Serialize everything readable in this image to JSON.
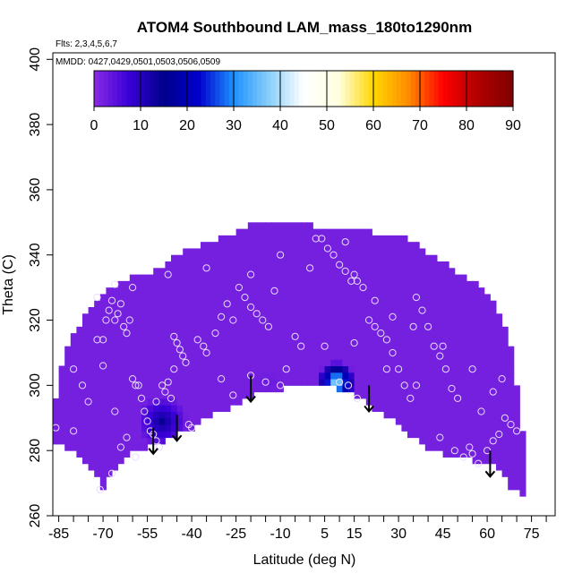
{
  "chart_data": {
    "type": "heatmap",
    "title": "ATOM4 Southbound LAM_mass_180to1290nm",
    "subtitle_flights": "Flts: 2,3,4,5,6,7",
    "subtitle_dates": "MMDD: 0427,0429,0501,0503,0506,0509",
    "xlabel": "Latitude (deg N)",
    "ylabel": "Theta (C)",
    "xlim": [
      -87,
      83
    ],
    "ylim": [
      260,
      402
    ],
    "x_ticks": [
      -85,
      -70,
      -55,
      -40,
      -25,
      -10,
      5,
      15,
      30,
      45,
      60,
      75
    ],
    "x_minor_ticks": [
      -80,
      -75,
      -65,
      -60,
      -50,
      -45,
      -35,
      -30,
      -20,
      -15,
      -5,
      0,
      10,
      20,
      25,
      35,
      40,
      50,
      55,
      65,
      70,
      80
    ],
    "y_ticks": [
      260,
      280,
      300,
      320,
      340,
      360,
      380,
      400
    ],
    "colorbar": {
      "min": 0,
      "max": 90,
      "ticks": [
        0,
        10,
        20,
        30,
        40,
        50,
        60,
        70,
        80,
        90
      ],
      "stops": [
        "#8a2be2",
        "#3a00d8",
        "#00008b",
        "#0000cd",
        "#1e90ff",
        "#87cefa",
        "#ffffff",
        "#ffffe0",
        "#ffd700",
        "#ff8c00",
        "#ff0000",
        "#b00000",
        "#800000"
      ]
    },
    "background_value": 2,
    "domain_top": [
      [
        -87,
        287
      ],
      [
        -86,
        295
      ],
      [
        -84,
        305
      ],
      [
        -82,
        312
      ],
      [
        -79,
        317
      ],
      [
        -76,
        321
      ],
      [
        -73,
        325
      ],
      [
        -68,
        329
      ],
      [
        -60,
        333
      ],
      [
        -50,
        336
      ],
      [
        -45,
        340
      ],
      [
        -40,
        342
      ],
      [
        -30,
        345
      ],
      [
        -20,
        349
      ],
      [
        -10,
        350
      ],
      [
        0,
        349
      ],
      [
        10,
        348
      ],
      [
        20,
        347
      ],
      [
        30,
        346
      ],
      [
        35,
        344
      ],
      [
        40,
        340
      ],
      [
        48,
        336
      ],
      [
        55,
        332
      ],
      [
        62,
        326
      ],
      [
        66,
        318
      ],
      [
        69,
        308
      ],
      [
        70,
        300
      ],
      [
        71,
        292
      ],
      [
        72,
        285
      ],
      [
        72,
        266
      ]
    ],
    "domain_bottom": [
      [
        -87,
        287
      ],
      [
        -87,
        282
      ],
      [
        -83,
        281
      ],
      [
        -78,
        278
      ],
      [
        -75,
        275
      ],
      [
        -72,
        272
      ],
      [
        -70,
        269
      ],
      [
        -65,
        275
      ],
      [
        -60,
        280
      ],
      [
        -55,
        281
      ],
      [
        -50,
        283
      ],
      [
        -45,
        285
      ],
      [
        -40,
        287
      ],
      [
        -35,
        290
      ],
      [
        -28,
        293
      ],
      [
        -22,
        296
      ],
      [
        -15,
        298
      ],
      [
        -10,
        299
      ],
      [
        -5,
        300
      ],
      [
        0,
        301
      ],
      [
        5,
        300
      ],
      [
        10,
        299
      ],
      [
        15,
        297
      ],
      [
        20,
        294
      ],
      [
        25,
        291
      ],
      [
        30,
        288
      ],
      [
        35,
        284
      ],
      [
        40,
        281
      ],
      [
        45,
        279
      ],
      [
        50,
        278
      ],
      [
        55,
        277
      ],
      [
        60,
        276
      ],
      [
        65,
        274
      ],
      [
        68,
        269
      ],
      [
        72,
        266
      ]
    ],
    "features": [
      {
        "name": "enhancement-south",
        "x_range": [
          -57,
          -40
        ],
        "y_range": [
          280,
          296
        ],
        "center": [
          -50,
          289
        ],
        "peak": 14
      },
      {
        "name": "enhancement-equator",
        "x_range": [
          3,
          16
        ],
        "y_range": [
          298,
          311
        ],
        "center": [
          9,
          301
        ],
        "peak": 42
      },
      {
        "name": "enhancement-weak",
        "x_range": [
          -19,
          -9
        ],
        "y_range": [
          298,
          305
        ],
        "center": [
          -14,
          301
        ],
        "peak": 3
      }
    ],
    "arrows": [
      {
        "x": -53,
        "y_top": 287,
        "y_bottom": 279
      },
      {
        "x": -45,
        "y_top": 291,
        "y_bottom": 283
      },
      {
        "x": -20,
        "y_top": 303,
        "y_bottom": 295
      },
      {
        "x": 20,
        "y_top": 300,
        "y_bottom": 292
      },
      {
        "x": 61,
        "y_top": 280,
        "y_bottom": 272
      }
    ],
    "sample_points": [
      [
        -86,
        287
      ],
      [
        -80,
        286
      ],
      [
        -75,
        295
      ],
      [
        -72,
        314
      ],
      [
        -70,
        306
      ],
      [
        -70,
        314
      ],
      [
        -69,
        320
      ],
      [
        -68,
        323
      ],
      [
        -67,
        326
      ],
      [
        -66,
        320
      ],
      [
        -65,
        322
      ],
      [
        -64,
        325
      ],
      [
        -63,
        318
      ],
      [
        -62,
        316
      ],
      [
        -61,
        320
      ],
      [
        -60,
        302
      ],
      [
        -59,
        300
      ],
      [
        -58,
        300
      ],
      [
        -57,
        296
      ],
      [
        -56,
        292
      ],
      [
        -55,
        289
      ],
      [
        -54,
        286
      ],
      [
        -53,
        285
      ],
      [
        -52,
        283
      ],
      [
        -51,
        281
      ],
      [
        -50,
        300
      ],
      [
        -49,
        298
      ],
      [
        -48,
        301
      ],
      [
        -47,
        296
      ],
      [
        -46,
        315
      ],
      [
        -45,
        313
      ],
      [
        -44,
        311
      ],
      [
        -43,
        309
      ],
      [
        -42,
        307
      ],
      [
        -41,
        288
      ],
      [
        -40,
        287
      ],
      [
        -38,
        314
      ],
      [
        -36,
        312
      ],
      [
        -35,
        310
      ],
      [
        -32,
        316
      ],
      [
        -30,
        321
      ],
      [
        -28,
        325
      ],
      [
        -26,
        320
      ],
      [
        -24,
        330
      ],
      [
        -22,
        327
      ],
      [
        -20,
        324
      ],
      [
        -18,
        322
      ],
      [
        -16,
        320
      ],
      [
        -14,
        318
      ],
      [
        -12,
        329
      ],
      [
        -10,
        300
      ],
      [
        -8,
        305
      ],
      [
        -5,
        315
      ],
      [
        -3,
        312
      ],
      [
        0,
        336
      ],
      [
        2,
        345
      ],
      [
        4,
        345
      ],
      [
        6,
        342
      ],
      [
        8,
        340
      ],
      [
        10,
        337
      ],
      [
        12,
        335
      ],
      [
        14,
        332
      ],
      [
        16,
        332
      ],
      [
        18,
        330
      ],
      [
        20,
        320
      ],
      [
        22,
        318
      ],
      [
        24,
        316
      ],
      [
        26,
        314
      ],
      [
        28,
        310
      ],
      [
        30,
        305
      ],
      [
        32,
        300
      ],
      [
        34,
        296
      ],
      [
        36,
        327
      ],
      [
        38,
        323
      ],
      [
        40,
        318
      ],
      [
        42,
        312
      ],
      [
        44,
        309
      ],
      [
        46,
        305
      ],
      [
        48,
        299
      ],
      [
        50,
        296
      ],
      [
        52,
        278
      ],
      [
        54,
        281
      ],
      [
        55,
        279
      ],
      [
        57,
        276
      ],
      [
        60,
        280
      ],
      [
        62,
        283
      ],
      [
        64,
        285
      ],
      [
        66,
        290
      ],
      [
        68,
        288
      ],
      [
        70,
        286
      ],
      [
        -60,
        330
      ],
      [
        -66,
        331
      ],
      [
        -48,
        334
      ],
      [
        -72,
        327
      ],
      [
        -77,
        300
      ],
      [
        -80,
        305
      ],
      [
        -64,
        281
      ],
      [
        -62,
        284
      ],
      [
        -59,
        278
      ],
      [
        -67,
        273
      ],
      [
        -71,
        268
      ],
      [
        -66,
        292
      ],
      [
        -52,
        295
      ],
      [
        -46,
        305
      ],
      [
        -30,
        302
      ],
      [
        -26,
        297
      ],
      [
        -20,
        303
      ],
      [
        -15,
        301
      ],
      [
        5,
        312
      ],
      [
        15,
        313
      ],
      [
        10,
        301
      ],
      [
        13,
        300
      ],
      [
        16,
        296
      ],
      [
        26,
        305
      ],
      [
        36,
        300
      ],
      [
        44,
        284
      ],
      [
        49,
        280
      ],
      [
        58,
        292
      ],
      [
        62,
        298
      ],
      [
        65,
        302
      ],
      [
        55,
        305
      ],
      [
        45,
        312
      ],
      [
        35,
        318
      ],
      [
        28,
        321
      ],
      [
        22,
        326
      ],
      [
        15,
        334
      ],
      [
        12,
        344
      ],
      [
        -10,
        340
      ],
      [
        -20,
        334
      ],
      [
        -35,
        336
      ]
    ]
  }
}
